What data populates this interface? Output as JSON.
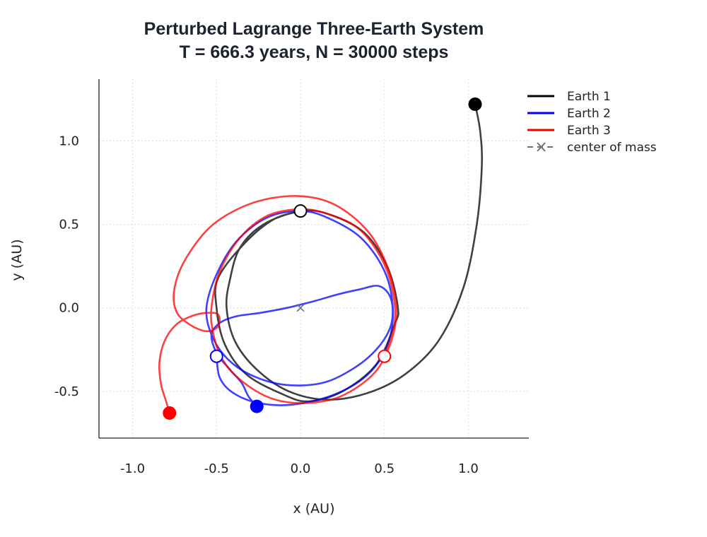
{
  "chart_data": {
    "type": "line",
    "title_line1": "Perturbed Lagrange Three-Earth System",
    "title_line2": "T = 666.3 years, N = 30000 steps",
    "xlabel": "x (AU)",
    "ylabel": "y (AU)",
    "xlim": [
      -1.2,
      1.36
    ],
    "ylim": [
      -0.78,
      1.37
    ],
    "x_ticks": [
      -1.0,
      -0.5,
      0.0,
      0.5,
      1.0
    ],
    "x_tick_labels": [
      "-1.0",
      "-0.5",
      "0.0",
      "0.5",
      "1.0"
    ],
    "y_ticks": [
      -0.5,
      0.0,
      0.5,
      1.0
    ],
    "y_tick_labels": [
      "-0.5",
      "0.0",
      "0.5",
      "1.0"
    ],
    "grid": true,
    "legend_position": "top-right",
    "legend": [
      {
        "label": "Earth 1",
        "color": "#000000",
        "style": "solid"
      },
      {
        "label": "Earth 2",
        "color": "#0000ff",
        "style": "solid"
      },
      {
        "label": "Earth 3",
        "color": "#ff0000",
        "style": "solid"
      },
      {
        "label": "center of mass",
        "color": "#6b7280",
        "style": "dashed-x"
      }
    ],
    "center_of_mass": {
      "x": 0.0,
      "y": 0.0
    },
    "series": [
      {
        "name": "Earth 1",
        "color": "#000000",
        "start": {
          "x": 0.0,
          "y": 0.58
        },
        "end": {
          "x": 1.04,
          "y": 1.22
        },
        "path": [
          [
            0.0,
            0.58
          ],
          [
            -0.16,
            0.53
          ],
          [
            -0.33,
            0.39
          ],
          [
            -0.49,
            0.18
          ],
          [
            -0.5,
            0.0
          ],
          [
            -0.45,
            -0.22
          ],
          [
            -0.32,
            -0.4
          ],
          [
            -0.1,
            -0.52
          ],
          [
            0.05,
            -0.56
          ],
          [
            0.25,
            -0.5
          ],
          [
            0.45,
            -0.34
          ],
          [
            0.56,
            -0.1
          ],
          [
            0.58,
            0.0
          ],
          [
            0.52,
            0.24
          ],
          [
            0.38,
            0.45
          ],
          [
            0.17,
            0.56
          ],
          [
            0.0,
            0.58
          ],
          [
            -0.22,
            0.5
          ],
          [
            -0.36,
            0.36
          ],
          [
            -0.42,
            0.17
          ],
          [
            -0.44,
            0.0
          ],
          [
            -0.39,
            -0.2
          ],
          [
            -0.26,
            -0.37
          ],
          [
            -0.07,
            -0.5
          ],
          [
            0.16,
            -0.55
          ],
          [
            0.4,
            -0.51
          ],
          [
            0.62,
            -0.4
          ],
          [
            0.82,
            -0.2
          ],
          [
            0.97,
            0.12
          ],
          [
            1.05,
            0.5
          ],
          [
            1.08,
            0.85
          ],
          [
            1.07,
            1.06
          ],
          [
            1.04,
            1.22
          ]
        ]
      },
      {
        "name": "Earth 2",
        "color": "#0000ff",
        "start": {
          "x": -0.5,
          "y": -0.29
        },
        "end": {
          "x": -0.26,
          "y": -0.59
        },
        "path": [
          [
            -0.5,
            -0.29
          ],
          [
            -0.48,
            -0.42
          ],
          [
            -0.4,
            -0.51
          ],
          [
            -0.25,
            -0.57
          ],
          [
            -0.05,
            -0.58
          ],
          [
            0.2,
            -0.52
          ],
          [
            0.4,
            -0.4
          ],
          [
            0.52,
            -0.22
          ],
          [
            0.55,
            0.0
          ],
          [
            0.5,
            0.22
          ],
          [
            0.36,
            0.42
          ],
          [
            0.16,
            0.54
          ],
          [
            0.0,
            0.58
          ],
          [
            -0.2,
            0.54
          ],
          [
            -0.38,
            0.4
          ],
          [
            -0.5,
            0.2
          ],
          [
            -0.56,
            0.0
          ],
          [
            -0.53,
            -0.16
          ],
          [
            -0.44,
            -0.3
          ],
          [
            -0.3,
            -0.4
          ],
          [
            -0.1,
            -0.46
          ],
          [
            0.13,
            -0.45
          ],
          [
            0.32,
            -0.36
          ],
          [
            0.46,
            -0.24
          ],
          [
            0.54,
            -0.1
          ],
          [
            0.54,
            0.05
          ],
          [
            0.47,
            0.13
          ],
          [
            0.35,
            0.11
          ],
          [
            0.22,
            0.08
          ],
          [
            0.08,
            0.04
          ],
          [
            -0.08,
            0.0
          ],
          [
            -0.24,
            -0.03
          ],
          [
            -0.38,
            -0.05
          ],
          [
            -0.48,
            -0.09
          ],
          [
            -0.53,
            -0.16
          ],
          [
            -0.5,
            -0.27
          ],
          [
            -0.42,
            -0.37
          ],
          [
            -0.35,
            -0.45
          ],
          [
            -0.31,
            -0.53
          ],
          [
            -0.26,
            -0.59
          ]
        ]
      },
      {
        "name": "Earth 3",
        "color": "#ff0000",
        "start": {
          "x": 0.5,
          "y": -0.29
        },
        "end": {
          "x": -0.78,
          "y": -0.63
        },
        "path": [
          [
            0.5,
            -0.29
          ],
          [
            0.56,
            -0.1
          ],
          [
            0.55,
            0.1
          ],
          [
            0.48,
            0.3
          ],
          [
            0.34,
            0.48
          ],
          [
            0.14,
            0.57
          ],
          [
            -0.02,
            0.59
          ],
          [
            -0.2,
            0.55
          ],
          [
            -0.36,
            0.42
          ],
          [
            -0.48,
            0.22
          ],
          [
            -0.53,
            0.0
          ],
          [
            -0.52,
            -0.15
          ],
          [
            -0.47,
            -0.3
          ],
          [
            -0.36,
            -0.43
          ],
          [
            -0.18,
            -0.54
          ],
          [
            0.02,
            -0.57
          ],
          [
            0.24,
            -0.53
          ],
          [
            0.44,
            -0.39
          ],
          [
            0.54,
            -0.2
          ],
          [
            0.57,
            0.0
          ],
          [
            0.52,
            0.24
          ],
          [
            0.4,
            0.46
          ],
          [
            0.2,
            0.62
          ],
          [
            -0.02,
            0.67
          ],
          [
            -0.28,
            0.63
          ],
          [
            -0.52,
            0.5
          ],
          [
            -0.68,
            0.3
          ],
          [
            -0.75,
            0.12
          ],
          [
            -0.74,
            -0.02
          ],
          [
            -0.66,
            -0.1
          ],
          [
            -0.56,
            -0.14
          ],
          [
            -0.49,
            -0.11
          ],
          [
            -0.49,
            -0.04
          ],
          [
            -0.56,
            -0.03
          ],
          [
            -0.65,
            -0.05
          ],
          [
            -0.74,
            -0.1
          ],
          [
            -0.81,
            -0.2
          ],
          [
            -0.84,
            -0.33
          ],
          [
            -0.83,
            -0.46
          ],
          [
            -0.8,
            -0.56
          ],
          [
            -0.78,
            -0.63
          ]
        ]
      }
    ]
  }
}
